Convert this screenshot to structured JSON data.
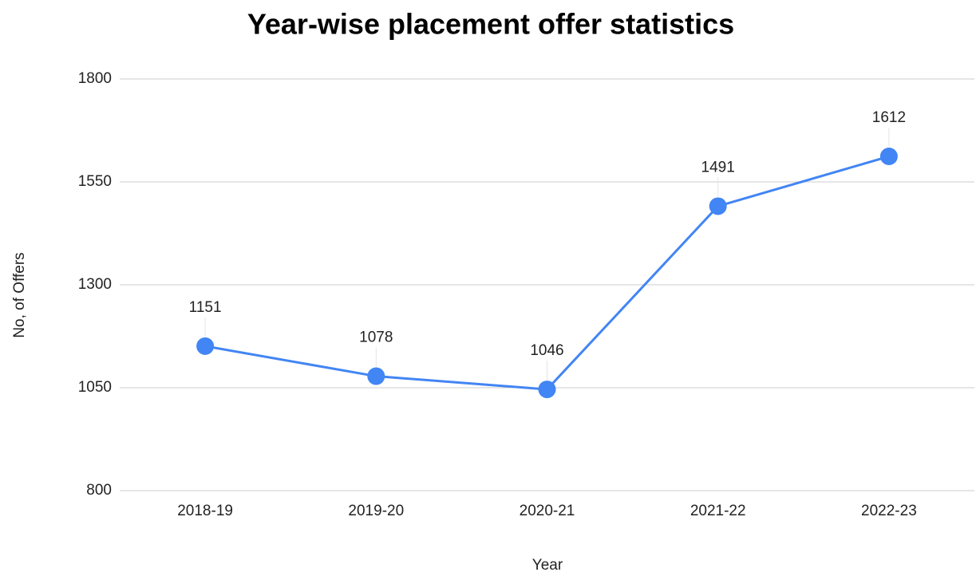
{
  "chart_data": {
    "type": "line",
    "title": "Year-wise placement offer statistics",
    "x_label": "Year",
    "y_label": "No, of Offers",
    "categories": [
      "2018-19",
      "2019-20",
      "2020-21",
      "2021-22",
      "2022-23"
    ],
    "series": [
      {
        "name": "No, of Offers",
        "color": "#4285f4",
        "values": [
          1151,
          1078,
          1046,
          1491,
          1612
        ]
      }
    ],
    "ylim": [
      800,
      1800
    ],
    "yticks": [
      800,
      1050,
      1300,
      1550,
      1800
    ],
    "grid": true
  }
}
